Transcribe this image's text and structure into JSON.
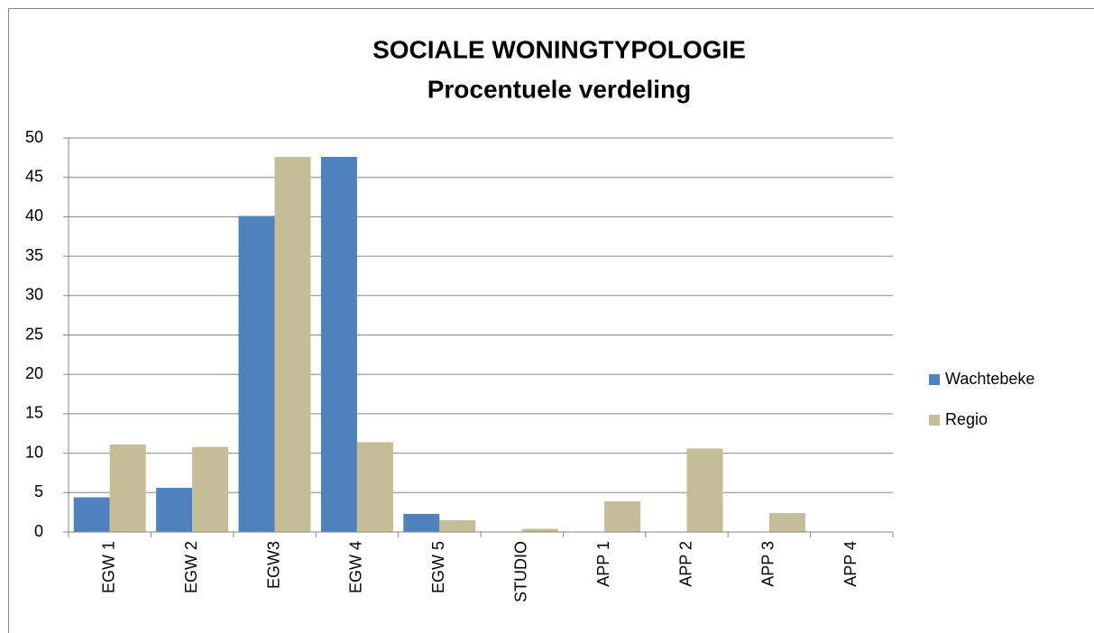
{
  "chart_data": {
    "type": "bar",
    "title": "SOCIALE WONINGTYPOLOGIE",
    "subtitle": "Procentuele verdeling",
    "categories": [
      "EGW 1",
      "EGW 2",
      "EGW3",
      "EGW 4",
      "EGW 5",
      "STUDIO",
      "APP 1",
      "APP 2",
      "APP 3",
      "APP 4"
    ],
    "series": [
      {
        "name": "Wachtebeke",
        "color": "#4f81bd",
        "values": [
          4.4,
          5.6,
          40.1,
          47.6,
          2.3,
          0,
          0,
          0,
          0,
          0
        ]
      },
      {
        "name": "Regio",
        "color": "#c4bd97",
        "values": [
          11.1,
          10.8,
          47.6,
          11.4,
          1.5,
          0.4,
          3.9,
          10.6,
          2.4,
          0
        ]
      }
    ],
    "ylim": [
      0,
      50
    ],
    "yticks": [
      0,
      5,
      10,
      15,
      20,
      25,
      30,
      35,
      40,
      45,
      50
    ],
    "grid": true,
    "legend": "right"
  }
}
